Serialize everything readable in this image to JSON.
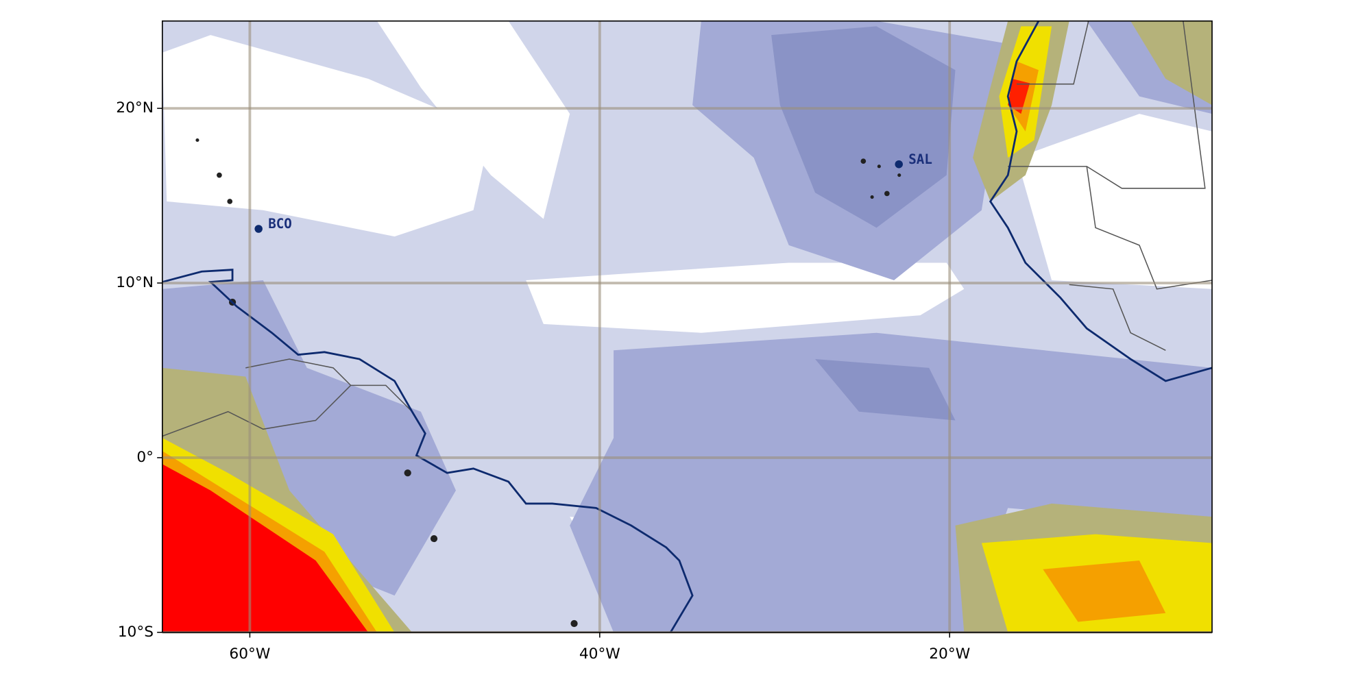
{
  "map": {
    "xlim": [
      -65,
      -5
    ],
    "ylim": [
      -10,
      25
    ],
    "xticks": [
      {
        "value": -60,
        "label": "60°W"
      },
      {
        "value": -40,
        "label": "40°W"
      },
      {
        "value": -20,
        "label": "20°W"
      }
    ],
    "yticks": [
      {
        "value": -10,
        "label": "10°S"
      },
      {
        "value": 0,
        "label": "0°"
      },
      {
        "value": 10,
        "label": "10°N"
      },
      {
        "value": 20,
        "label": "20°N"
      }
    ],
    "grid": true,
    "stations": [
      {
        "name": "BCO",
        "lon": -59.5,
        "lat": 13.1
      },
      {
        "name": "SAL",
        "lon": -22.9,
        "lat": 16.8
      }
    ]
  }
}
